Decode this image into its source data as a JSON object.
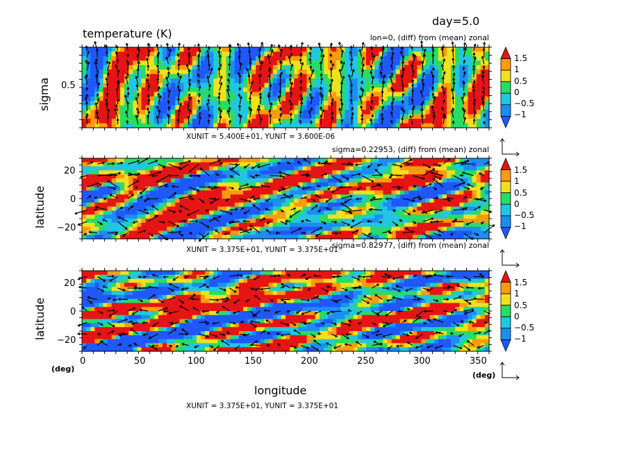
{
  "figure": {
    "day_label": "day=5.0",
    "title": "temperature (K)",
    "xlabel": "longitude"
  },
  "chart_data": [
    {
      "type": "heatmap",
      "subtitle": "lon=0, (diff) from (mean) zonal",
      "xlabel": "",
      "ylabel": "sigma",
      "yticks": [
        "0.5"
      ],
      "ylim": [
        0,
        1
      ],
      "unit_note": "XUNIT = 5.400E+01, YUNIT = 3.600E-06",
      "colorbar_labels": [
        "1.5",
        "1",
        "0.5",
        "0",
        "−0.5",
        "−1"
      ],
      "vector_overlay": true
    },
    {
      "type": "heatmap",
      "subtitle": "sigma=0.22953, (diff) from (mean) zonal",
      "ylabel": "latitude",
      "yticks": [
        "20",
        "0",
        "−20"
      ],
      "ylim": [
        -30,
        30
      ],
      "unit_note": "XUNIT = 3.375E+01, YUNIT = 3.375E+01",
      "colorbar_labels": [
        "1.5",
        "1",
        "0.5",
        "0",
        "−0.5",
        "−1"
      ],
      "vector_overlay": true
    },
    {
      "type": "heatmap",
      "subtitle": "sigma=0.82977, (diff) from (mean) zonal",
      "ylabel": "latitude",
      "xlabel": "longitude",
      "xticks": [
        "0",
        "50",
        "100",
        "150",
        "200",
        "250",
        "300",
        "350"
      ],
      "xlim": [
        0,
        360
      ],
      "x_unit": "(deg)",
      "yticks": [
        "20",
        "0",
        "−20"
      ],
      "ylim": [
        -30,
        30
      ],
      "y_unit": "(deg)",
      "unit_note": "XUNIT = 3.375E+01, YUNIT = 3.375E+01",
      "colorbar_labels": [
        "1.5",
        "1",
        "0.5",
        "0",
        "−0.5",
        "−1"
      ],
      "vector_overlay": true
    }
  ],
  "colors": {
    "levels": [
      "#1f58ff",
      "#1c8ef0",
      "#22c6e0",
      "#28dc64",
      "#f0e11e",
      "#ff9b0f",
      "#e61414"
    ],
    "vector": "#000000"
  }
}
